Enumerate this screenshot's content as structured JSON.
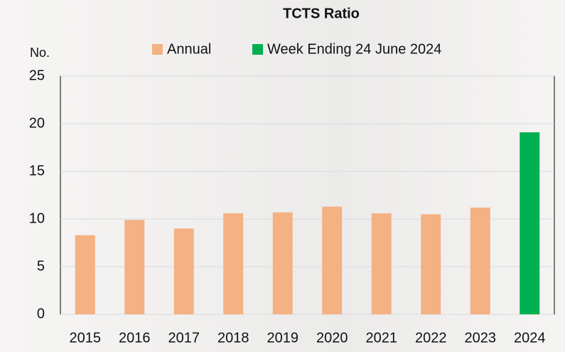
{
  "chart_data": {
    "type": "bar",
    "title": "TCTS Ratio",
    "y_label": "No.",
    "categories": [
      "2015",
      "2016",
      "2017",
      "2018",
      "2019",
      "2020",
      "2021",
      "2022",
      "2023",
      "2024"
    ],
    "series": [
      {
        "name": "Annual",
        "color": "#f4b183",
        "values": [
          8.3,
          9.9,
          9.0,
          10.6,
          10.7,
          11.3,
          10.6,
          10.5,
          11.2,
          null
        ]
      },
      {
        "name": "Week Ending 24 June 2024",
        "color": "#00b050",
        "values": [
          null,
          null,
          null,
          null,
          null,
          null,
          null,
          null,
          null,
          19.1
        ]
      }
    ],
    "ylim": [
      0,
      25
    ],
    "yticks": [
      0,
      5,
      10,
      15,
      20,
      25
    ],
    "grid": true
  }
}
